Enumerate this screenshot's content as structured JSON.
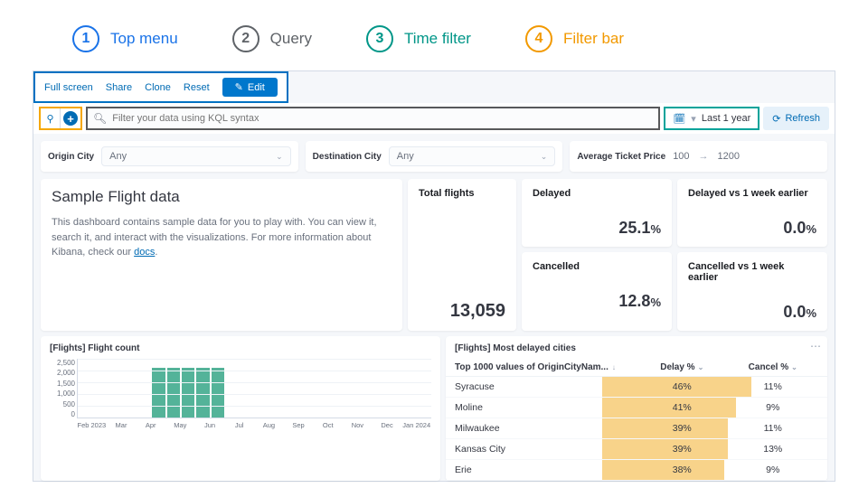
{
  "legend": [
    {
      "num": "1",
      "label": "Top menu",
      "color": "#1a73e8"
    },
    {
      "num": "2",
      "label": "Query",
      "color": "#5f6368"
    },
    {
      "num": "3",
      "label": "Time filter",
      "color": "#009688"
    },
    {
      "num": "4",
      "label": "Filter bar",
      "color": "#f29900"
    }
  ],
  "topmenu": {
    "fullscreen": "Full screen",
    "share": "Share",
    "clone": "Clone",
    "reset": "Reset",
    "edit": "Edit"
  },
  "query": {
    "placeholder": "Filter your data using KQL syntax",
    "time_label": "Last 1 year",
    "refresh": "Refresh"
  },
  "controls": {
    "origin_label": "Origin City",
    "origin_value": "Any",
    "dest_label": "Destination City",
    "dest_value": "Any",
    "price_label": "Average Ticket Price",
    "price_min": "100",
    "price_max": "1200"
  },
  "intro": {
    "title": "Sample Flight data",
    "body_a": "This dashboard contains sample data for you to play with. You can view it, search it, and interact with the visualizations. For more information about Kibana, check our ",
    "docs": "docs",
    "body_b": "."
  },
  "metrics": {
    "total_label": "Total flights",
    "total_value": "13,059",
    "delayed_label": "Delayed",
    "delayed_value": "25.1",
    "delayed_vs_label": "Delayed vs 1 week earlier",
    "delayed_vs_value": "0.0",
    "cancelled_label": "Cancelled",
    "cancelled_value": "12.8",
    "cancelled_vs_label": "Cancelled vs 1 week earlier",
    "cancelled_vs_value": "0.0"
  },
  "chart": {
    "title": "[Flights] Flight count",
    "yticks": [
      "2,500",
      "2,000",
      "1,500",
      "1,000",
      "500",
      "0"
    ],
    "ymax": 2500,
    "bar_color": "#54b399",
    "grid_color": "#eef2f6",
    "months": [
      "Feb 2023",
      "Mar",
      "Apr",
      "May",
      "Jun",
      "Jul",
      "Aug",
      "Sep",
      "Oct",
      "Nov",
      "Dec",
      "Jan 2024"
    ],
    "values": [
      0,
      0,
      0,
      0,
      0,
      2100,
      2100,
      2100,
      2100,
      2100,
      0,
      0,
      0,
      0,
      0,
      0,
      0,
      0,
      0,
      0,
      0,
      0,
      0,
      0
    ]
  },
  "table": {
    "title": "[Flights] Most delayed cities",
    "col1": "Top 1000 values of OriginCityNam...",
    "col2": "Delay %",
    "col3": "Cancel %",
    "heat_color": "#f8d38a",
    "rows": [
      {
        "city": "Syracuse",
        "delay": "46%",
        "cancel": "11%",
        "heat_l": 41,
        "heat_w": 39
      },
      {
        "city": "Moline",
        "delay": "41%",
        "cancel": "9%",
        "heat_l": 41,
        "heat_w": 35
      },
      {
        "city": "Milwaukee",
        "delay": "39%",
        "cancel": "11%",
        "heat_l": 41,
        "heat_w": 33
      },
      {
        "city": "Kansas City",
        "delay": "39%",
        "cancel": "13%",
        "heat_l": 41,
        "heat_w": 33
      },
      {
        "city": "Erie",
        "delay": "38%",
        "cancel": "9%",
        "heat_l": 41,
        "heat_w": 32
      }
    ]
  }
}
